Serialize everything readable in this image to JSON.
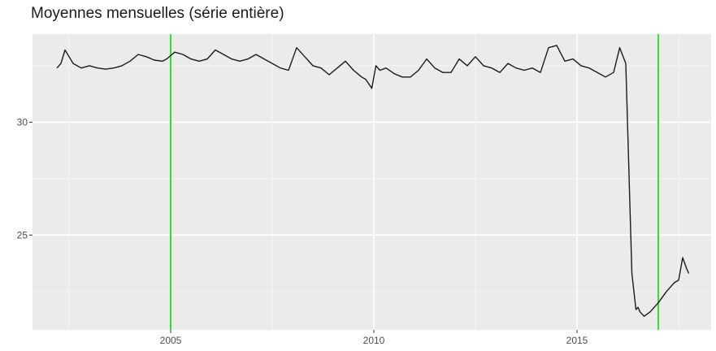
{
  "chart_data": {
    "type": "line",
    "title": "Moyennes mensuelles (série entière)",
    "xlabel": "",
    "ylabel": "",
    "xlim": [
      2001.6,
      2018.3
    ],
    "ylim": [
      20.8,
      33.9
    ],
    "x_ticks": [
      2005,
      2010,
      2015
    ],
    "x_tick_labels": [
      "2005",
      "2010",
      "2015"
    ],
    "y_ticks": [
      25,
      30
    ],
    "y_tick_labels": [
      "25",
      "30"
    ],
    "grid": true,
    "legend": "none",
    "background_color": "#ebebeb",
    "line_color": "#1a1a1a",
    "reference_lines": {
      "color": "#33dd33",
      "x": [
        2005.0,
        2017.0
      ]
    },
    "series": [
      {
        "x": [
          2002.2,
          2002.3,
          2002.4,
          2002.5,
          2002.6,
          2002.8,
          2003.0,
          2003.2,
          2003.4,
          2003.6,
          2003.8,
          2004.0,
          2004.2,
          2004.4,
          2004.6,
          2004.8,
          2004.9,
          2005.1,
          2005.3,
          2005.5,
          2005.7,
          2005.9,
          2006.1,
          2006.3,
          2006.5,
          2006.7,
          2006.9,
          2007.1,
          2007.3,
          2007.5,
          2007.7,
          2007.9,
          2008.1,
          2008.3,
          2008.5,
          2008.7,
          2008.9,
          2009.1,
          2009.3,
          2009.5,
          2009.7,
          2009.8,
          2009.95,
          2010.05,
          2010.15,
          2010.3,
          2010.5,
          2010.7,
          2010.9,
          2011.1,
          2011.3,
          2011.5,
          2011.7,
          2011.9,
          2012.1,
          2012.3,
          2012.5,
          2012.7,
          2012.9,
          2013.1,
          2013.3,
          2013.5,
          2013.7,
          2013.9,
          2014.1,
          2014.3,
          2014.5,
          2014.7,
          2014.9,
          2015.1,
          2015.3,
          2015.5,
          2015.7,
          2015.9,
          2016.05,
          2016.2,
          2016.35,
          2016.45,
          2016.5,
          2016.55,
          2016.65,
          2016.8,
          2017.0,
          2017.2,
          2017.4,
          2017.5,
          2017.6,
          2017.7,
          2017.75
        ],
        "values": [
          32.4,
          32.6,
          33.2,
          32.9,
          32.6,
          32.4,
          32.5,
          32.4,
          32.35,
          32.4,
          32.5,
          32.7,
          33.0,
          32.9,
          32.75,
          32.7,
          32.8,
          33.1,
          33.0,
          32.8,
          32.7,
          32.8,
          33.2,
          33.0,
          32.8,
          32.7,
          32.8,
          33.0,
          32.8,
          32.6,
          32.4,
          32.3,
          33.3,
          32.9,
          32.5,
          32.4,
          32.1,
          32.4,
          32.7,
          32.3,
          32.0,
          31.9,
          31.5,
          32.5,
          32.3,
          32.4,
          32.15,
          32.0,
          32.0,
          32.3,
          32.8,
          32.4,
          32.2,
          32.2,
          32.8,
          32.5,
          32.9,
          32.5,
          32.4,
          32.2,
          32.6,
          32.4,
          32.3,
          32.4,
          32.2,
          33.3,
          33.4,
          32.7,
          32.8,
          32.5,
          32.4,
          32.2,
          32.0,
          32.2,
          33.3,
          32.6,
          23.3,
          21.7,
          21.8,
          21.6,
          21.4,
          21.6,
          22.0,
          22.5,
          22.9,
          23.0,
          24.0,
          23.5,
          23.3
        ]
      }
    ]
  }
}
